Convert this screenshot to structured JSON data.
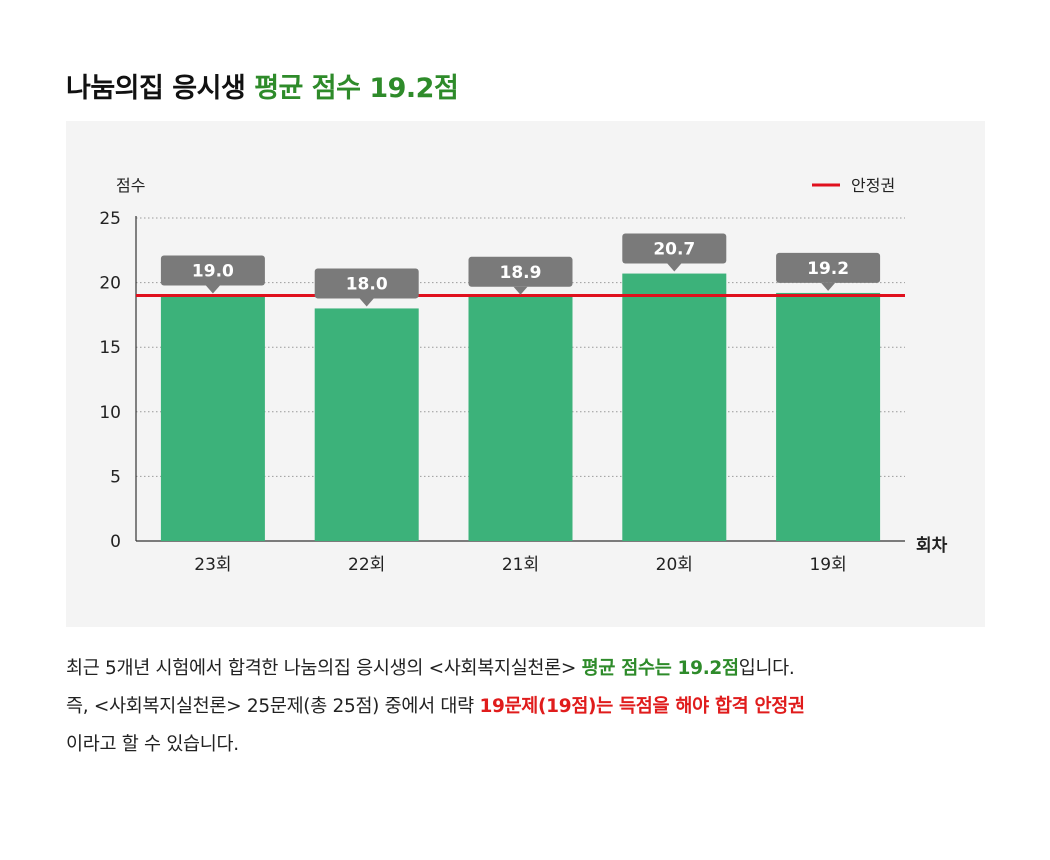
{
  "title": {
    "prefix": "나눔의집 응시생",
    "highlight": "평균 점수 19.2점"
  },
  "colors": {
    "bar": "#3cb27a",
    "threshold_line": "#e0101d",
    "label_box": "#7a7a7a",
    "panel_bg": "#f4f4f4",
    "highlight_green": "#2e8b2a",
    "highlight_red": "#e01c1c"
  },
  "chart_data": {
    "type": "bar",
    "categories": [
      "23회",
      "22회",
      "21회",
      "20회",
      "19회"
    ],
    "values": [
      19.0,
      18.0,
      18.9,
      20.7,
      19.2
    ],
    "data_labels": [
      "19.0",
      "18.0",
      "18.9",
      "20.7",
      "19.2"
    ],
    "ylabel": "점수",
    "xlabel": "회차",
    "ylim": [
      0,
      25
    ],
    "yticks": [
      0,
      5,
      10,
      15,
      20,
      25
    ],
    "grid": true,
    "threshold": {
      "name": "안정권",
      "value": 19
    },
    "legend_position": "top-right"
  },
  "description": {
    "line1_a": "최근 5개년 시험에서 합격한 나눔의집 응시생의 <사회복지실천론> ",
    "line1_b": "평균 점수는 19.2점",
    "line1_c": "입니다.",
    "line2_a": "즉, <사회복지실천론> 25문제(총 25점) 중에서 대략 ",
    "line2_b": "19문제(19점)는 득점을 해야 합격 안정권",
    "line3": "이라고 할 수 있습니다."
  }
}
